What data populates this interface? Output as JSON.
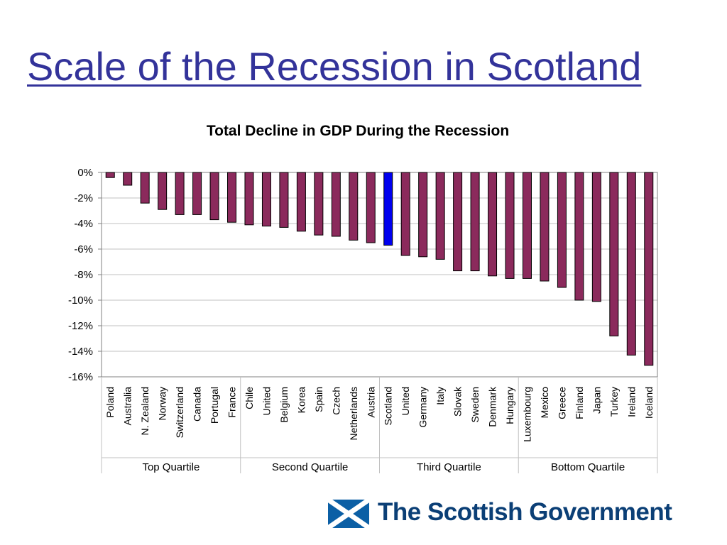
{
  "slide": {
    "title": "Scale of the Recession in Scotland",
    "logo_text": "The Scottish Government"
  },
  "colors": {
    "title": "#33339a",
    "bar": "#8b2a5c",
    "highlight": "#0000ee",
    "logo": "#0b3f76"
  },
  "chart_data": {
    "type": "bar",
    "title": "Total Decline in GDP During the Recession",
    "xlabel": "",
    "ylabel": "",
    "ylim": [
      -16,
      0
    ],
    "yticks": [
      "0%",
      "-2%",
      "-4%",
      "-6%",
      "-8%",
      "-10%",
      "-12%",
      "-14%",
      "-16%"
    ],
    "yticks_values": [
      0,
      -2,
      -4,
      -6,
      -8,
      -10,
      -12,
      -14,
      -16
    ],
    "grid": true,
    "categories": [
      "Poland",
      "Australia",
      "N. Zealand",
      "Norway",
      "Switzerland",
      "Canada",
      "Portugal",
      "France",
      "Chile",
      "United",
      "Belgium",
      "Korea",
      "Spain",
      "Czech",
      "Netherlands",
      "Austria",
      "Scotland",
      "United",
      "Germany",
      "Italy",
      "Slovak",
      "Sweden",
      "Denmark",
      "Hungary",
      "Luxembourg",
      "Mexico",
      "Greece",
      "Finland",
      "Japan",
      "Turkey",
      "Ireland",
      "Iceland"
    ],
    "values": [
      -0.4,
      -1.0,
      -2.4,
      -2.9,
      -3.3,
      -3.3,
      -3.7,
      -3.9,
      -4.1,
      -4.2,
      -4.3,
      -4.6,
      -4.9,
      -5.0,
      -5.3,
      -5.5,
      -5.7,
      -6.5,
      -6.6,
      -6.8,
      -7.7,
      -7.7,
      -8.1,
      -8.3,
      -8.3,
      -8.5,
      -9.0,
      -10.0,
      -10.1,
      -12.8,
      -14.3,
      -15.1
    ],
    "highlight_category": "Scotland",
    "groups": [
      {
        "label": "Top Quartile",
        "count": 8
      },
      {
        "label": "Second Quartile",
        "count": 8
      },
      {
        "label": "Third Quartile",
        "count": 8
      },
      {
        "label": "Bottom Quartile",
        "count": 8
      }
    ]
  }
}
